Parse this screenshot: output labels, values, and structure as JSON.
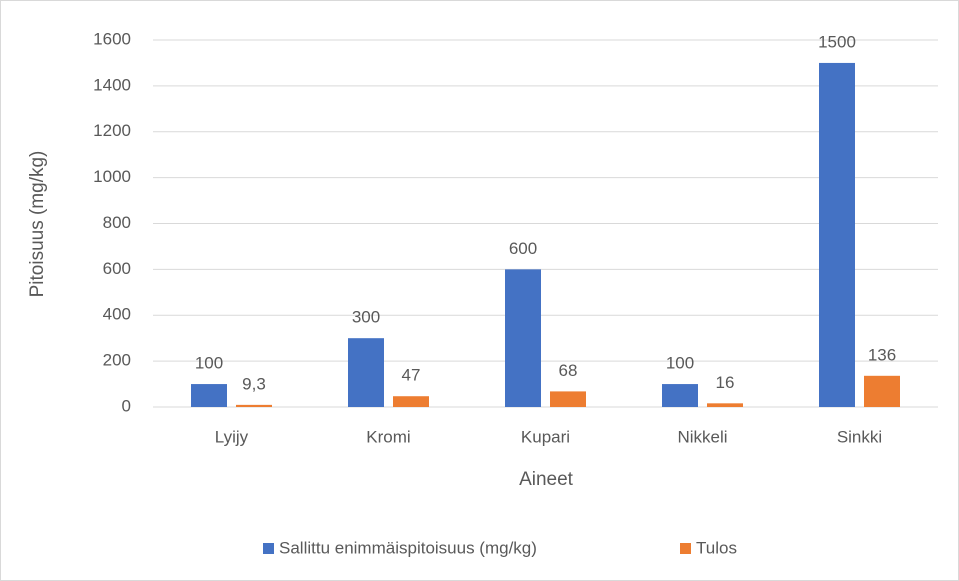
{
  "chart_data": {
    "type": "bar",
    "x_label": "Aineet",
    "y_label": "Pitoisuus (mg/kg)",
    "categories": [
      "Lyijy",
      "Kromi",
      "Kupari",
      "Nikkeli",
      "Sinkki"
    ],
    "series": [
      {
        "name": "Sallittu enimmäispitoisuus (mg/kg)",
        "color": "#4472c4",
        "values": [
          100,
          300,
          600,
          100,
          1500
        ]
      },
      {
        "name": "Tulos",
        "color": "#ed7d31",
        "values": [
          9.3,
          47,
          68,
          16,
          136
        ],
        "value_labels": [
          "9,3",
          "47",
          "68",
          "16",
          "136"
        ]
      }
    ],
    "ylim": [
      0,
      1600
    ],
    "yticks": [
      0,
      200,
      400,
      600,
      800,
      1000,
      1200,
      1400,
      1600
    ],
    "grid": true,
    "legend": "bottom"
  }
}
